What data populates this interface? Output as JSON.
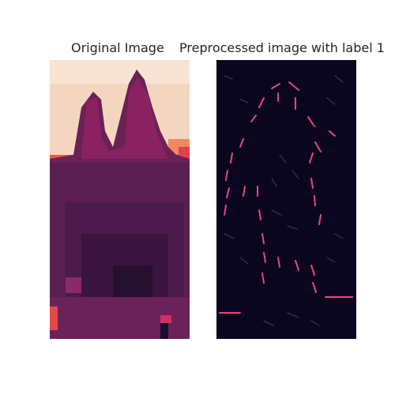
{
  "figure": {
    "left_title": "Original Image",
    "right_title": "Preprocessed image with label 1"
  },
  "colors": {
    "background": "#ffffff",
    "light_peach": "#f6dcc4",
    "salmon": "#f07a5c",
    "magenta": "#b62a5c",
    "plum": "#5a1f51",
    "dark_purple": "#3a1742",
    "deep": "#1e0c2c",
    "black_bg": "#0b0620",
    "highlight": "#e8467c"
  }
}
